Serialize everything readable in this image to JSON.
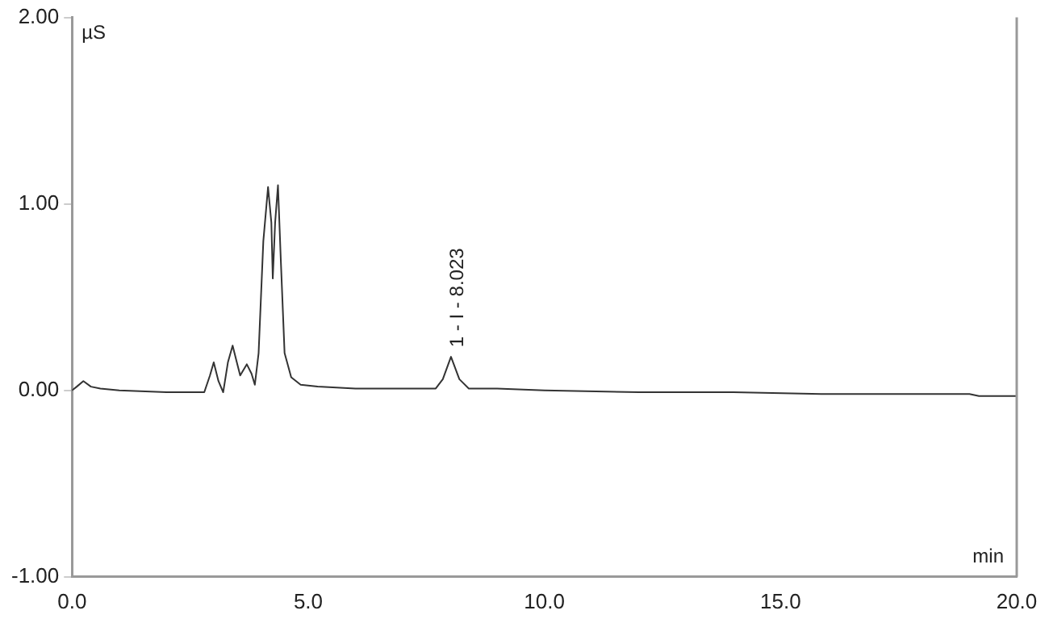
{
  "chart_data": {
    "type": "line",
    "xlabel": "min",
    "ylabel": "µS",
    "xlim": [
      0,
      20
    ],
    "ylim": [
      -1,
      2
    ],
    "xticks": [
      {
        "value": 0,
        "label": "0.0"
      },
      {
        "value": 5,
        "label": "5.0"
      },
      {
        "value": 10,
        "label": "10.0"
      },
      {
        "value": 15,
        "label": "15.0"
      },
      {
        "value": 20,
        "label": "20.0"
      }
    ],
    "yticks": [
      {
        "value": -1,
        "label": "-1.00"
      },
      {
        "value": 0,
        "label": "0.00"
      },
      {
        "value": 1,
        "label": "1.00"
      },
      {
        "value": 2,
        "label": "2.00"
      }
    ],
    "grid": false,
    "legend": false,
    "marker": "none",
    "line_style": "solid",
    "series": [
      {
        "color": "#333333",
        "x": [
          0,
          0.1,
          0.24,
          0.4,
          0.6,
          1.0,
          2.0,
          2.8,
          2.92,
          3.0,
          3.1,
          3.2,
          3.3,
          3.4,
          3.5,
          3.56,
          3.7,
          3.8,
          3.87,
          3.95,
          4.05,
          4.15,
          4.22,
          4.25,
          4.3,
          4.36,
          4.42,
          4.5,
          4.64,
          4.84,
          5.2,
          6.0,
          7.0,
          7.7,
          7.85,
          8.023,
          8.2,
          8.4,
          9.0,
          10.0,
          12.0,
          14.0,
          16.0,
          18.0,
          19.0,
          19.2,
          20.0
        ],
        "values": [
          0.0,
          0.02,
          0.05,
          0.02,
          0.01,
          0.0,
          -0.01,
          -0.01,
          0.08,
          0.15,
          0.05,
          -0.01,
          0.15,
          0.24,
          0.14,
          0.08,
          0.14,
          0.09,
          0.03,
          0.2,
          0.8,
          1.09,
          0.9,
          0.6,
          0.9,
          1.1,
          0.7,
          0.2,
          0.07,
          0.03,
          0.02,
          0.01,
          0.01,
          0.01,
          0.06,
          0.18,
          0.06,
          0.01,
          0.01,
          0.0,
          -0.01,
          -0.01,
          -0.02,
          -0.02,
          -0.02,
          -0.03,
          -0.03
        ]
      }
    ],
    "annotations": [
      {
        "text": "1 - I - 8.023",
        "x": 8.023,
        "y": 0.18
      }
    ]
  }
}
